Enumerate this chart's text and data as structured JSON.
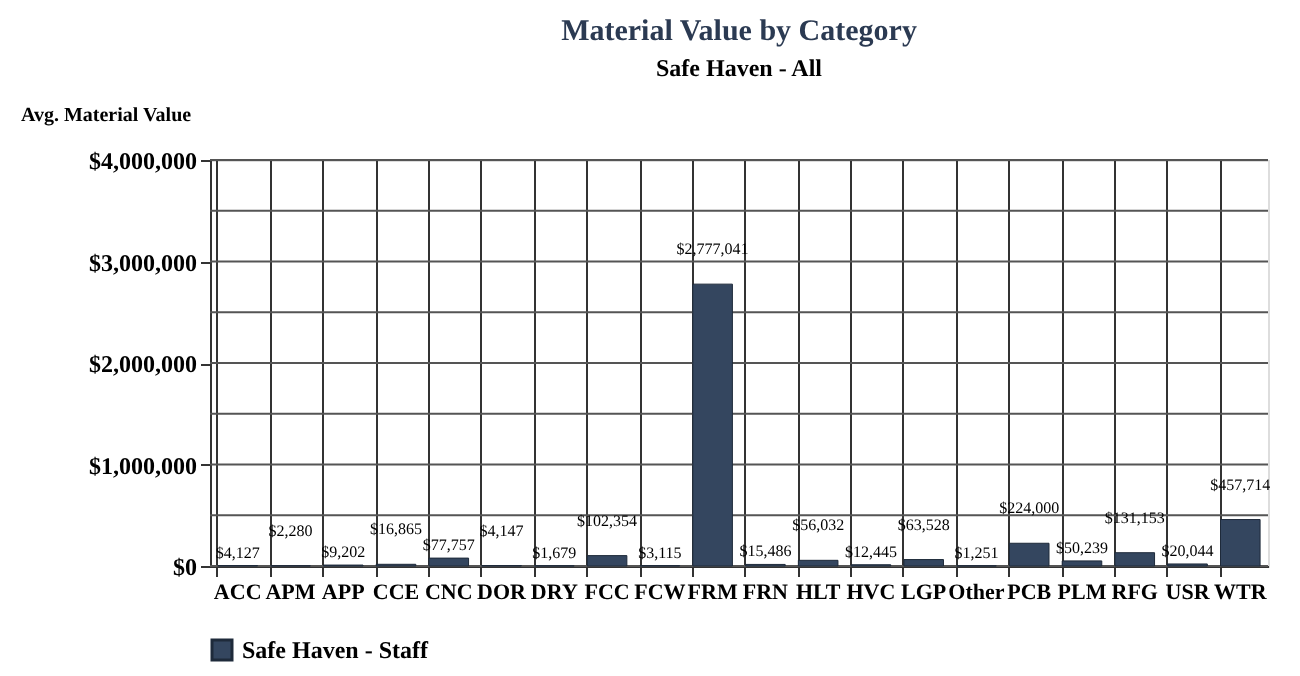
{
  "chart_data": {
    "type": "bar",
    "title": "Material Value by Category",
    "subtitle": "Safe Haven - All",
    "ylabel": "Avg. Material Value",
    "categories": [
      "ACC",
      "APM",
      "APP",
      "CCE",
      "CNC",
      "DOR",
      "DRY",
      "FCC",
      "FCW",
      "FRM",
      "FRN",
      "HLT",
      "HVC",
      "LGP",
      "Other",
      "PCB",
      "PLM",
      "RFG",
      "USR",
      "WTR"
    ],
    "series": [
      {
        "name": "Safe Haven - Staff",
        "color": "#34465f",
        "values": [
          4127,
          2280,
          9202,
          16865,
          77757,
          4147,
          1679,
          102354,
          3115,
          2777041,
          15486,
          56032,
          12445,
          63528,
          1251,
          224000,
          50239,
          131153,
          20044,
          457714
        ],
        "value_labels": [
          "$4,127",
          "$2,280",
          "$9,202",
          "$16,865",
          "$77,757",
          "$4,147",
          "$1,679",
          "$102,354",
          "$3,115",
          "$2,777,041",
          "$15,486",
          "$56,032",
          "$12,445",
          "$63,528",
          "$1,251",
          "$224,000",
          "$50,239",
          "$131,153",
          "$20,044",
          "$457,714"
        ]
      }
    ],
    "ylim": [
      0,
      4000000
    ],
    "yticks": [
      {
        "value": 0,
        "label": "$0"
      },
      {
        "value": 500000,
        "label": null
      },
      {
        "value": 1000000,
        "label": "$1,000,000"
      },
      {
        "value": 1500000,
        "label": null
      },
      {
        "value": 2000000,
        "label": "$2,000,000"
      },
      {
        "value": 2500000,
        "label": null
      },
      {
        "value": 3000000,
        "label": "$3,000,000"
      },
      {
        "value": 3500000,
        "label": null
      },
      {
        "value": 4000000,
        "label": "$4,000,000"
      }
    ],
    "grid": true,
    "legend": "bottom left"
  }
}
